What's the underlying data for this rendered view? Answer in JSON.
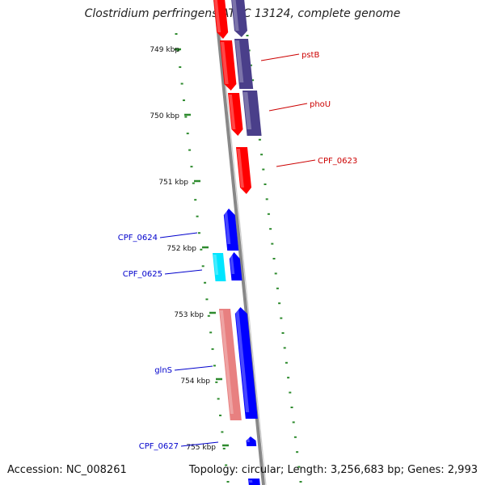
{
  "title": "Clostridium perfringens ATCC 13124, complete genome",
  "footer": {
    "accession": "Accession: NC_008261",
    "summary": "Topology: circular; Length: 3,256,683 bp; Genes: 2,993"
  },
  "colors": {
    "backbone": "#888888",
    "tick": "#2e8b2e",
    "gene_red": "#ff0000",
    "gene_navy": "#4a3f8a",
    "gene_blue": "#0000ff",
    "gene_cyan": "#00e5ff",
    "gene_pink": "#e88080",
    "label_red": "#cc0000",
    "label_blue": "#0000cc"
  },
  "ruler": [
    {
      "label": "749 kbp"
    },
    {
      "label": "750 kbp"
    },
    {
      "label": "751 kbp"
    },
    {
      "label": "752 kbp"
    },
    {
      "label": "753 kbp"
    },
    {
      "label": "754 kbp"
    },
    {
      "label": "755 kbp"
    }
  ],
  "labels": [
    {
      "text": "pstB",
      "color": "red"
    },
    {
      "text": "phoU",
      "color": "red"
    },
    {
      "text": "CPF_0623",
      "color": "red"
    },
    {
      "text": "CPF_0624",
      "color": "blue"
    },
    {
      "text": "CPF_0625",
      "color": "blue"
    },
    {
      "text": "glnS",
      "color": "blue"
    },
    {
      "text": "CPF_0627",
      "color": "blue"
    }
  ]
}
